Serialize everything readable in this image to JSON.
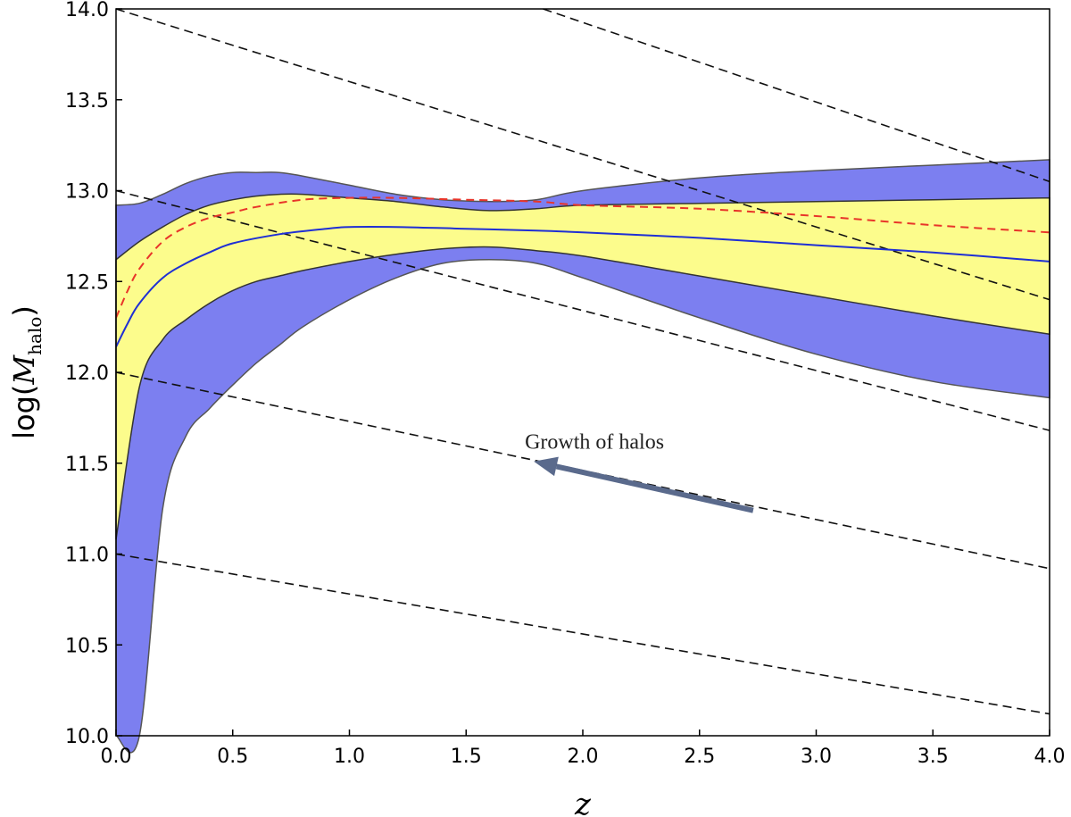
{
  "chart_data": {
    "type": "area",
    "xlabel": "z",
    "ylabel": "log(M_halo)",
    "ylabel_prefix": "log(",
    "ylabel_symbol": "M",
    "ylabel_subscript": "halo",
    "ylabel_suffix": ")",
    "xlim": [
      0.0,
      4.0
    ],
    "ylim": [
      10.0,
      14.0
    ],
    "xticks": [
      "0.0",
      "0.5",
      "1.0",
      "1.5",
      "2.0",
      "2.5",
      "3.0",
      "3.5",
      "4.0"
    ],
    "yticks": [
      "10.0",
      "10.5",
      "11.0",
      "11.5",
      "12.0",
      "12.5",
      "13.0",
      "13.5",
      "14.0"
    ],
    "grid": false,
    "colors": {
      "outer_band": "#7c7ff0",
      "inner_band": "#fcfc8c",
      "median_line": "#1f2fd4",
      "dashed_red": "#e8352a",
      "tracks": "#111111",
      "arrow": "#5a6a8c"
    },
    "bands": {
      "outer": {
        "x": [
          0.0,
          0.1,
          0.2,
          0.3,
          0.4,
          0.5,
          0.6,
          0.7,
          0.8,
          1.0,
          1.2,
          1.4,
          1.6,
          1.8,
          2.0,
          2.5,
          3.0,
          3.5,
          4.0
        ],
        "upper": [
          12.92,
          12.93,
          12.98,
          13.04,
          13.08,
          13.1,
          13.1,
          13.1,
          13.08,
          13.03,
          12.98,
          12.95,
          12.94,
          12.95,
          13.0,
          13.07,
          13.11,
          13.14,
          13.17
        ],
        "lower": [
          10.0,
          10.0,
          11.25,
          11.65,
          11.8,
          11.93,
          12.05,
          12.15,
          12.25,
          12.4,
          12.52,
          12.6,
          12.62,
          12.6,
          12.52,
          12.3,
          12.1,
          11.95,
          11.86
        ]
      },
      "inner": {
        "x": [
          0.0,
          0.1,
          0.2,
          0.3,
          0.4,
          0.5,
          0.6,
          0.7,
          0.8,
          1.0,
          1.2,
          1.4,
          1.6,
          1.8,
          2.0,
          2.5,
          3.0,
          3.5,
          4.0
        ],
        "upper": [
          12.62,
          12.72,
          12.8,
          12.87,
          12.92,
          12.95,
          12.97,
          12.98,
          12.98,
          12.96,
          12.94,
          12.91,
          12.89,
          12.9,
          12.92,
          12.93,
          12.94,
          12.95,
          12.96
        ],
        "lower": [
          11.08,
          11.92,
          12.18,
          12.29,
          12.38,
          12.45,
          12.5,
          12.53,
          12.56,
          12.61,
          12.65,
          12.68,
          12.69,
          12.67,
          12.64,
          12.53,
          12.42,
          12.31,
          12.21
        ]
      }
    },
    "series": [
      {
        "style": "solid",
        "x": [
          0.0,
          0.05,
          0.1,
          0.2,
          0.3,
          0.4,
          0.5,
          0.7,
          0.9,
          1.0,
          1.2,
          1.5,
          1.8,
          2.0,
          2.5,
          3.0,
          3.5,
          4.0
        ],
        "y": [
          12.14,
          12.27,
          12.38,
          12.52,
          12.6,
          12.66,
          12.71,
          12.76,
          12.79,
          12.8,
          12.8,
          12.79,
          12.78,
          12.77,
          12.74,
          12.7,
          12.66,
          12.61
        ]
      },
      {
        "style": "dashed",
        "x": [
          0.0,
          0.05,
          0.1,
          0.2,
          0.3,
          0.4,
          0.5,
          0.6,
          0.8,
          1.0,
          1.2,
          1.5,
          1.8,
          2.0,
          2.5,
          3.0,
          3.5,
          4.0
        ],
        "y": [
          12.3,
          12.45,
          12.57,
          12.72,
          12.8,
          12.85,
          12.88,
          12.91,
          12.95,
          12.96,
          12.96,
          12.95,
          12.94,
          12.92,
          12.9,
          12.86,
          12.81,
          12.77
        ]
      }
    ],
    "growth_tracks": [
      {
        "x": [
          0.0,
          4.0
        ],
        "y": [
          14.0,
          12.4
        ]
      },
      {
        "x": [
          0.0,
          4.0
        ],
        "y": [
          13.0,
          11.68
        ]
      },
      {
        "x": [
          0.0,
          4.0
        ],
        "y": [
          12.0,
          10.92
        ]
      },
      {
        "x": [
          0.0,
          4.0
        ],
        "y": [
          11.0,
          10.12
        ]
      },
      {
        "x": [
          1.83,
          4.0
        ],
        "y": [
          14.0,
          13.05
        ]
      }
    ],
    "annotation": {
      "text": "Growth of halos",
      "x": 2.05,
      "y": 11.58
    },
    "arrow": {
      "from": [
        2.73,
        11.24
      ],
      "to": [
        1.79,
        11.51
      ]
    }
  }
}
